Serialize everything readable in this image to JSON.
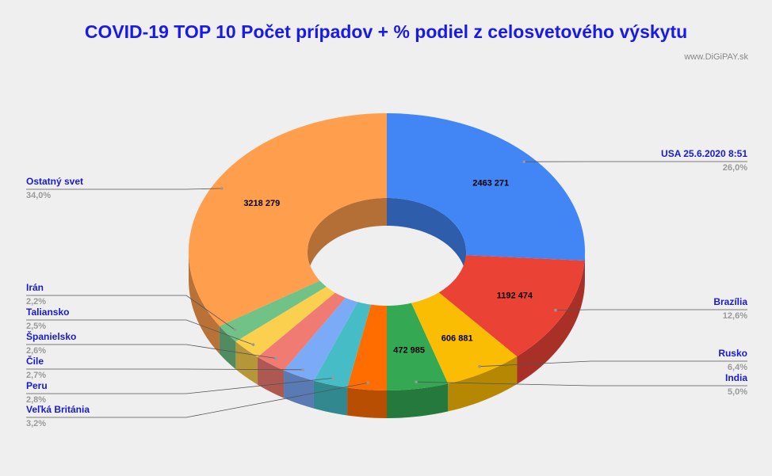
{
  "chart_data": {
    "type": "donut3d",
    "title": "COVID-19  TOP 10 Počet prípadov + % podiel z celosvetového výskytu",
    "subtitle": "www.DiGiPAY.sk",
    "categories": [
      "USA 25.6.2020 8:51",
      "Brazília",
      "Rusko",
      "India",
      "Veľká Británia",
      "Peru",
      "Čile",
      "Španielsko",
      "Taliansko",
      "Irán",
      "Ostatný svet"
    ],
    "values": [
      26.0,
      12.6,
      6.4,
      5.0,
      3.2,
      2.8,
      2.7,
      2.6,
      2.5,
      2.2,
      34.0
    ],
    "value_labels": [
      "26,0%",
      "12,6%",
      "6,4%",
      "5,0%",
      "3,2%",
      "2,8%",
      "2,7%",
      "2,6%",
      "2,5%",
      "2,2%",
      "34,0%"
    ],
    "amount_labels": [
      "2463 271",
      "1192 474",
      "606 881",
      "472 985",
      null,
      null,
      null,
      null,
      null,
      null,
      "3218 279"
    ],
    "colors": [
      "#4285f4",
      "#ea4335",
      "#fbbc04",
      "#34a853",
      "#ff6d01",
      "#46bdc6",
      "#7baaf7",
      "#f07b72",
      "#fcd04f",
      "#71c287",
      "#ff9e4d"
    ]
  }
}
